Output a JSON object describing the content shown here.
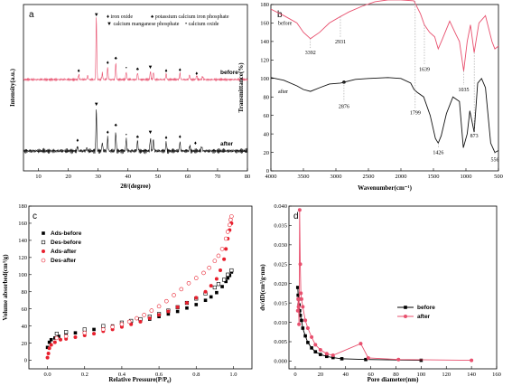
{
  "chart_data": [
    {
      "id": "a",
      "panel_label": "a",
      "type": "line",
      "xlabel": "2θ/(degree)",
      "ylabel": "Intensity(a.u.)",
      "xlim": [
        5,
        80
      ],
      "xticks": [
        10,
        20,
        30,
        40,
        50,
        60,
        70,
        80
      ],
      "legend": [
        {
          "symbol": "♦",
          "text": "iron oxide"
        },
        {
          "symbol": "♠",
          "text": "potassium calcium iron phosphate"
        },
        {
          "symbol": "▼",
          "text": "calcium manganese phosphate"
        },
        {
          "symbol": "•",
          "text": "calcium oxide"
        }
      ],
      "series": [
        {
          "name": "before",
          "color": "#e8506e",
          "peaks": [
            [
              23.5,
              0.08
            ],
            [
              26.5,
              0.06
            ],
            [
              29.4,
              1.0
            ],
            [
              31.4,
              0.1
            ],
            [
              33.2,
              0.2
            ],
            [
              35.9,
              0.26
            ],
            [
              39.4,
              0.12
            ],
            [
              43.2,
              0.11
            ],
            [
              47.5,
              0.13
            ],
            [
              48.5,
              0.12
            ],
            [
              52.8,
              0.09
            ],
            [
              57.4,
              0.1
            ],
            [
              60.6,
              0.07
            ],
            [
              63.0,
              0.07
            ],
            [
              65.0,
              0.05
            ]
          ]
        },
        {
          "name": "after",
          "color": "#111111",
          "peaks": [
            [
              23.1,
              0.1
            ],
            [
              26.2,
              0.07
            ],
            [
              29.4,
              0.9
            ],
            [
              31.4,
              0.18
            ],
            [
              33.2,
              0.3
            ],
            [
              35.9,
              0.4
            ],
            [
              39.4,
              0.25
            ],
            [
              43.2,
              0.23
            ],
            [
              47.5,
              0.28
            ],
            [
              48.5,
              0.24
            ],
            [
              52.8,
              0.2
            ],
            [
              57.4,
              0.2
            ],
            [
              60.7,
              0.12
            ],
            [
              64.7,
              0.1
            ]
          ]
        }
      ]
    },
    {
      "id": "b",
      "panel_label": "b",
      "type": "line",
      "xlabel": "Wavenumber(cm⁻¹)",
      "ylabel": "Transmittance(%)",
      "xlim": [
        4000,
        500
      ],
      "ylim": [
        0,
        180
      ],
      "xticks": [
        4000,
        3500,
        3000,
        2500,
        2000,
        1500,
        1000,
        500
      ],
      "yticks": [
        0,
        20,
        40,
        60,
        80,
        100,
        120,
        140,
        160,
        180
      ],
      "annotations": [
        "3392",
        "2931",
        "2876",
        "1799",
        "1639",
        "1426",
        "1035",
        "873",
        "556"
      ],
      "series": [
        {
          "name": "before",
          "color": "#e8506e",
          "points": [
            [
              4000,
              175
            ],
            [
              3800,
              168
            ],
            [
              3600,
              160
            ],
            [
              3500,
              150
            ],
            [
              3392,
              143
            ],
            [
              3250,
              150
            ],
            [
              3100,
              160
            ],
            [
              2931,
              167
            ],
            [
              2800,
              172
            ],
            [
              2600,
              178
            ],
            [
              2400,
              183
            ],
            [
              2200,
              185
            ],
            [
              2000,
              185
            ],
            [
              1800,
              184
            ],
            [
              1700,
              170
            ],
            [
              1639,
              158
            ],
            [
              1560,
              150
            ],
            [
              1480,
              145
            ],
            [
              1426,
              132
            ],
            [
              1360,
              143
            ],
            [
              1250,
              162
            ],
            [
              1150,
              147
            ],
            [
              1100,
              140
            ],
            [
              1035,
              108
            ],
            [
              980,
              140
            ],
            [
              930,
              158
            ],
            [
              873,
              128
            ],
            [
              800,
              160
            ],
            [
              700,
              168
            ],
            [
              600,
              140
            ],
            [
              556,
              132
            ],
            [
              500,
              135
            ]
          ]
        },
        {
          "name": "after",
          "color": "#111111",
          "points": [
            [
              4000,
              101
            ],
            [
              3800,
              98
            ],
            [
              3600,
              92
            ],
            [
              3500,
              88
            ],
            [
              3392,
              86
            ],
            [
              3250,
              90
            ],
            [
              3100,
              94
            ],
            [
              2931,
              95
            ],
            [
              2876,
              96
            ],
            [
              2700,
              99
            ],
            [
              2500,
              100
            ],
            [
              2200,
              101
            ],
            [
              2000,
              100
            ],
            [
              1850,
              95
            ],
            [
              1799,
              88
            ],
            [
              1750,
              85
            ],
            [
              1650,
              80
            ],
            [
              1550,
              60
            ],
            [
              1470,
              35
            ],
            [
              1426,
              30
            ],
            [
              1380,
              38
            ],
            [
              1300,
              62
            ],
            [
              1200,
              80
            ],
            [
              1100,
              75
            ],
            [
              1040,
              25
            ],
            [
              980,
              40
            ],
            [
              940,
              65
            ],
            [
              873,
              42
            ],
            [
              820,
              95
            ],
            [
              760,
              100
            ],
            [
              700,
              90
            ],
            [
              620,
              30
            ],
            [
              556,
              20
            ],
            [
              500,
              22
            ]
          ]
        }
      ]
    },
    {
      "id": "c",
      "panel_label": "c",
      "type": "scatter",
      "xlabel": "Relative Pressure(P/P₀)",
      "ylabel": "Volume absorbed(cm³/g)",
      "xlim": [
        -0.1,
        1.1
      ],
      "ylim": [
        -10,
        180
      ],
      "xticks": [
        0.0,
        0.2,
        0.4,
        0.6,
        0.8,
        1.0
      ],
      "yticks": [
        0,
        20,
        40,
        60,
        80,
        100,
        120,
        140,
        160,
        180
      ],
      "series": [
        {
          "name": "Ads-before",
          "color": "#000000",
          "marker": "filled-square",
          "points": [
            [
              0.0,
              15
            ],
            [
              0.01,
              21
            ],
            [
              0.02,
              24
            ],
            [
              0.04,
              26
            ],
            [
              0.06,
              28
            ],
            [
              0.1,
              30
            ],
            [
              0.15,
              32
            ],
            [
              0.2,
              34
            ],
            [
              0.25,
              36
            ],
            [
              0.3,
              38
            ],
            [
              0.35,
              40
            ],
            [
              0.4,
              42
            ],
            [
              0.45,
              44
            ],
            [
              0.5,
              46
            ],
            [
              0.55,
              48
            ],
            [
              0.6,
              51
            ],
            [
              0.65,
              54
            ],
            [
              0.7,
              57
            ],
            [
              0.75,
              61
            ],
            [
              0.8,
              65
            ],
            [
              0.85,
              70
            ],
            [
              0.88,
              74
            ],
            [
              0.91,
              79
            ],
            [
              0.94,
              86
            ],
            [
              0.96,
              92
            ],
            [
              0.97,
              96
            ],
            [
              0.98,
              99
            ],
            [
              0.99,
              103
            ]
          ]
        },
        {
          "name": "Des-before",
          "color": "#000000",
          "marker": "open-square",
          "points": [
            [
              0.99,
              105
            ],
            [
              0.97,
              100
            ],
            [
              0.95,
              94
            ],
            [
              0.92,
              89
            ],
            [
              0.9,
              85
            ],
            [
              0.85,
              78
            ],
            [
              0.8,
              72
            ],
            [
              0.75,
              67
            ],
            [
              0.7,
              62
            ],
            [
              0.65,
              58
            ],
            [
              0.6,
              54
            ],
            [
              0.55,
              51
            ],
            [
              0.5,
              48
            ],
            [
              0.45,
              46
            ],
            [
              0.4,
              44
            ],
            [
              0.3,
              40
            ],
            [
              0.2,
              36
            ],
            [
              0.1,
              33
            ],
            [
              0.05,
              31
            ]
          ]
        },
        {
          "name": "Ads-after",
          "color": "#e8202e",
          "marker": "filled-circle",
          "points": [
            [
              0.0,
              3
            ],
            [
              0.005,
              8
            ],
            [
              0.01,
              14
            ],
            [
              0.02,
              18
            ],
            [
              0.04,
              21
            ],
            [
              0.07,
              24
            ],
            [
              0.1,
              25
            ],
            [
              0.15,
              27
            ],
            [
              0.2,
              29
            ],
            [
              0.25,
              31
            ],
            [
              0.3,
              34
            ],
            [
              0.35,
              36
            ],
            [
              0.4,
              39
            ],
            [
              0.45,
              42
            ],
            [
              0.5,
              45
            ],
            [
              0.55,
              49
            ],
            [
              0.6,
              53
            ],
            [
              0.65,
              57
            ],
            [
              0.7,
              62
            ],
            [
              0.75,
              67
            ],
            [
              0.8,
              73
            ],
            [
              0.85,
              80
            ],
            [
              0.88,
              87
            ],
            [
              0.91,
              95
            ],
            [
              0.93,
              105
            ],
            [
              0.95,
              118
            ],
            [
              0.96,
              130
            ],
            [
              0.97,
              142
            ],
            [
              0.98,
              152
            ],
            [
              0.99,
              160
            ]
          ]
        },
        {
          "name": "Des-after",
          "color": "#e8202e",
          "marker": "open-circle",
          "points": [
            [
              0.99,
              168
            ],
            [
              0.985,
              164
            ],
            [
              0.98,
              158
            ],
            [
              0.97,
              150
            ],
            [
              0.96,
              142
            ],
            [
              0.94,
              130
            ],
            [
              0.92,
              122
            ],
            [
              0.9,
              116
            ],
            [
              0.87,
              108
            ],
            [
              0.84,
              102
            ],
            [
              0.8,
              96
            ],
            [
              0.76,
              90
            ],
            [
              0.72,
              83
            ],
            [
              0.68,
              76
            ],
            [
              0.64,
              69
            ],
            [
              0.6,
              63
            ],
            [
              0.56,
              58
            ],
            [
              0.52,
              53
            ],
            [
              0.48,
              49
            ],
            [
              0.44,
              45
            ],
            [
              0.4,
              42
            ],
            [
              0.35,
              39
            ],
            [
              0.3,
              36
            ],
            [
              0.2,
              32
            ],
            [
              0.1,
              28
            ],
            [
              0.05,
              26
            ]
          ]
        }
      ]
    },
    {
      "id": "d",
      "panel_label": "d",
      "type": "line",
      "xlabel": "Pore diameter(nm)",
      "ylabel": "dv/dD(cm³/g·nm)",
      "xlim": [
        -5,
        160
      ],
      "ylim": [
        -0.002,
        0.04
      ],
      "xticks": [
        0,
        20,
        40,
        60,
        80,
        100,
        120,
        140,
        160
      ],
      "yticks": [
        0.0,
        0.005,
        0.01,
        0.015,
        0.02,
        0.025,
        0.03,
        0.035,
        0.04
      ],
      "series": [
        {
          "name": "before",
          "color": "#000000",
          "marker": "filled-square",
          "points": [
            [
              2.0,
              0.019
            ],
            [
              2.3,
              0.017
            ],
            [
              2.6,
              0.016
            ],
            [
              3.0,
              0.0145
            ],
            [
              3.5,
              0.013
            ],
            [
              4.0,
              0.0118
            ],
            [
              5.0,
              0.0105
            ],
            [
              6.0,
              0.0085
            ],
            [
              8.0,
              0.0065
            ],
            [
              10.0,
              0.0048
            ],
            [
              13.0,
              0.0034
            ],
            [
              16.0,
              0.0024
            ],
            [
              20.0,
              0.0017
            ],
            [
              25.0,
              0.0012
            ],
            [
              30.0,
              0.0009
            ],
            [
              37.0,
              0.0006
            ],
            [
              56.0,
              0.0004
            ],
            [
              100.0,
              0.0002
            ]
          ]
        },
        {
          "name": "after",
          "color": "#e8506e",
          "marker": "filled-circle",
          "points": [
            [
              2.0,
              0.013
            ],
            [
              2.3,
              0.016
            ],
            [
              2.6,
              0.014
            ],
            [
              3.0,
              0.0095
            ],
            [
              3.5,
              0.039
            ],
            [
              4.0,
              0.025
            ],
            [
              4.5,
              0.0175
            ],
            [
              5.0,
              0.016
            ],
            [
              6.0,
              0.014
            ],
            [
              8.0,
              0.0105
            ],
            [
              10.0,
              0.0085
            ],
            [
              13.0,
              0.0062
            ],
            [
              16.0,
              0.0042
            ],
            [
              20.0,
              0.0029
            ],
            [
              25.0,
              0.0019
            ],
            [
              30.0,
              0.0015
            ],
            [
              52.0,
              0.0045
            ],
            [
              58.0,
              0.0008
            ],
            [
              82.0,
              0.0004
            ],
            [
              140.0,
              0.0002
            ]
          ]
        }
      ]
    }
  ]
}
